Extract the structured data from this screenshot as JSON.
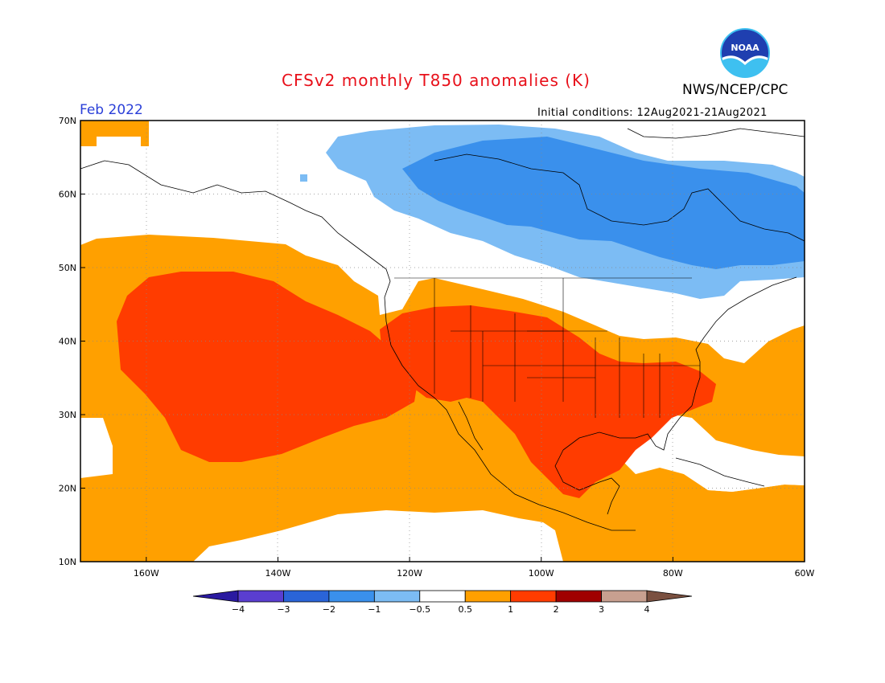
{
  "title": "CFSv2 monthly T850 anomalies (K)",
  "organization": "NWS/NCEP/CPC",
  "logo_text": "NOAA",
  "forecast_period": "Feb 2022",
  "initial_conditions": "Initial conditions: 12Aug2021-21Aug2021",
  "map": {
    "lat_labels": [
      "70N",
      "60N",
      "50N",
      "40N",
      "30N",
      "20N",
      "10N"
    ],
    "lon_labels": [
      "160W",
      "140W",
      "120W",
      "100W",
      "80W",
      "60W"
    ],
    "extent": {
      "lon_min": -170,
      "lon_max": -60,
      "lat_min": 10,
      "lat_max": 70
    }
  },
  "colorbar": {
    "labels": [
      "-4",
      "-3",
      "-2",
      "-1",
      "-0.5",
      "0.5",
      "1",
      "2",
      "3",
      "4"
    ],
    "colors": [
      "#2a1aa0",
      "#5a3ed0",
      "#2a64d8",
      "#3a90ec",
      "#7cbcf4",
      "#ffffff",
      "#ffa000",
      "#ff3c00",
      "#a00000",
      "#c8a090",
      "#7a5040"
    ]
  },
  "colors": {
    "title": "#e8101a",
    "period": "#2a3fd8",
    "anom_pos_05_1": "#ffa000",
    "anom_pos_1_2": "#ff3c00",
    "anom_neg_05_1": "#7cbcf4",
    "anom_neg_1_2": "#3a90ec"
  }
}
